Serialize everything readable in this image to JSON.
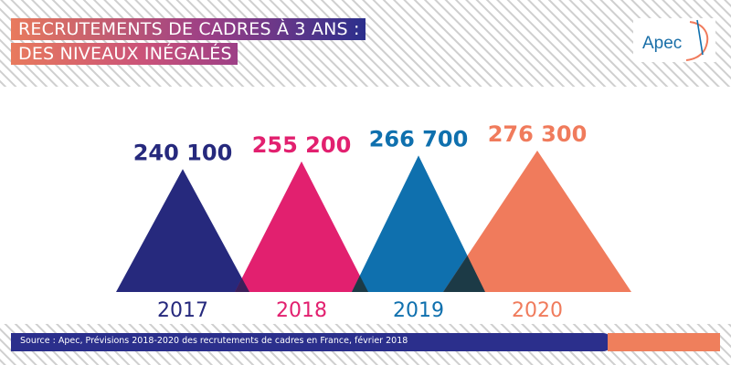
{
  "header": {
    "title_line1": "RECRUTEMENTS DE CADRES À 3 ANS :",
    "title_line2": "DES NIVEAUX INÉGALÉS",
    "logo_text": "Apec"
  },
  "chart_data": {
    "type": "area",
    "categories": [
      "2017",
      "2018",
      "2019",
      "2020"
    ],
    "values": [
      240100,
      255200,
      266700,
      276300
    ],
    "value_labels": [
      "240 100",
      "255 200",
      "266 700",
      "276 300"
    ],
    "colors": [
      "#26297d",
      "#e2206f",
      "#0f70ae",
      "#f07b5c"
    ],
    "overlap_color": "#1c3a46",
    "title": "RECRUTEMENTS DE CADRES À 3 ANS : DES NIVEAUX INÉGALÉS"
  },
  "footer": {
    "source": "Source : Apec, Prévisions 2018-2020 des recrutements de cadres en France, février 2018"
  }
}
